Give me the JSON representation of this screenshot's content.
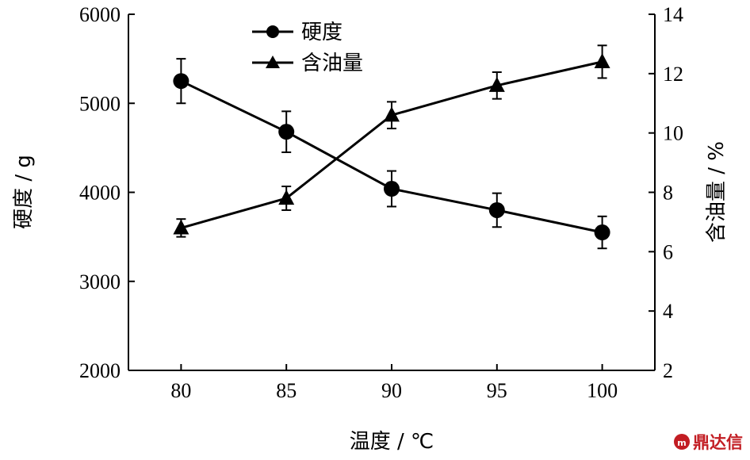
{
  "chart_data": {
    "type": "line",
    "x_label": "温度 / ℃",
    "y_left_label": "硬度 / g",
    "y_right_label": "含油量 / %",
    "x": [
      80,
      85,
      90,
      95,
      100
    ],
    "x_ticks": [
      "80",
      "85",
      "90",
      "95",
      "100"
    ],
    "x_range": [
      77.5,
      102.5
    ],
    "y_left_range": [
      2000,
      6000
    ],
    "y_left_ticks": [
      "2000",
      "3000",
      "4000",
      "5000",
      "6000"
    ],
    "y_right_range": [
      2,
      14
    ],
    "y_right_ticks": [
      "2",
      "4",
      "6",
      "8",
      "10",
      "12",
      "14"
    ],
    "grid": false,
    "legend_position": "top-left",
    "series": [
      {
        "name": "硬度",
        "axis": "left",
        "marker": "circle",
        "values": [
          5250,
          4680,
          4040,
          3800,
          3550
        ],
        "errors": [
          250,
          230,
          200,
          190,
          180
        ]
      },
      {
        "name": "含油量",
        "axis": "right",
        "marker": "triangle",
        "values": [
          6.8,
          7.8,
          10.6,
          11.6,
          12.4
        ],
        "errors": [
          0.3,
          0.4,
          0.45,
          0.45,
          0.55
        ]
      }
    ]
  },
  "watermark": {
    "text": "鼎达信"
  },
  "colors": {
    "ink": "#000000",
    "watermark": "#c21d23"
  }
}
